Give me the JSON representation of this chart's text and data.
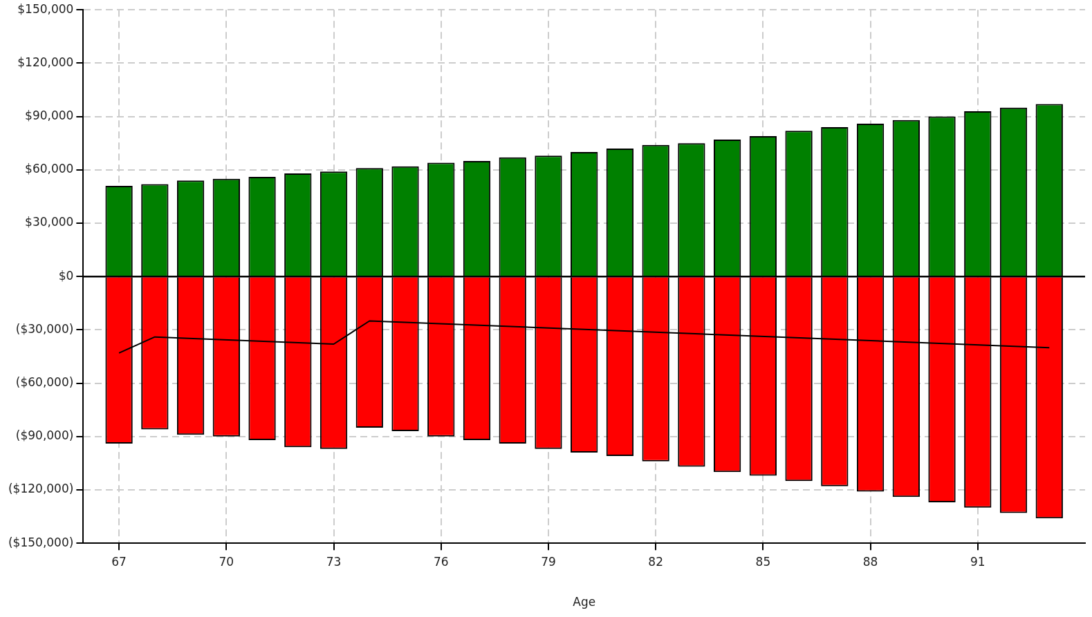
{
  "chart_data": {
    "type": "bar",
    "xlabel": "Age",
    "stacked": true,
    "grid": true,
    "legend": false,
    "x": [
      67,
      68,
      69,
      70,
      71,
      72,
      73,
      74,
      75,
      76,
      77,
      78,
      79,
      80,
      81,
      82,
      83,
      84,
      85,
      86,
      87,
      88,
      89,
      90,
      91,
      92,
      93
    ],
    "xlim": [
      66,
      94
    ],
    "xticks": [
      67,
      70,
      73,
      76,
      79,
      82,
      85,
      88,
      91
    ],
    "ylim": [
      -150000,
      150000
    ],
    "yticks": [
      {
        "value": -150000,
        "label": "($150,000)"
      },
      {
        "value": -120000,
        "label": "($120,000)"
      },
      {
        "value": -90000,
        "label": "($90,000)"
      },
      {
        "value": -60000,
        "label": "($60,000)"
      },
      {
        "value": -30000,
        "label": "($30,000)"
      },
      {
        "value": 0,
        "label": "$0"
      },
      {
        "value": 30000,
        "label": "$30,000"
      },
      {
        "value": 60000,
        "label": "$60,000"
      },
      {
        "value": 90000,
        "label": "$90,000"
      },
      {
        "value": 120000,
        "label": "$120,000"
      },
      {
        "value": 150000,
        "label": "$150,000"
      }
    ],
    "series": [
      {
        "color": "#008000",
        "values": [
          51000,
          52000,
          54000,
          55000,
          56000,
          58000,
          59000,
          61000,
          62000,
          64000,
          65000,
          67000,
          68000,
          70000,
          72000,
          74000,
          75000,
          77000,
          79000,
          82000,
          84000,
          86000,
          88000,
          90000,
          93000,
          95000,
          97000
        ]
      },
      {
        "color": "#ff0000",
        "values": [
          -94000,
          -86000,
          -89000,
          -90000,
          -92000,
          -96000,
          -97000,
          -85000,
          -87000,
          -90000,
          -92000,
          -94000,
          -97000,
          -99000,
          -101000,
          -104000,
          -107000,
          -110000,
          -112000,
          -115000,
          -118000,
          -121000,
          -124000,
          -127000,
          -130000,
          -133000,
          -136000
        ]
      },
      {
        "type": "line",
        "color": "#000000",
        "marker": "none",
        "line_style": "solid",
        "x": [
          67,
          68,
          73,
          74,
          93
        ],
        "values": [
          -43000,
          -34000,
          -38000,
          -25000,
          -40000
        ]
      }
    ],
    "ref_lines": [
      {
        "axis": "y",
        "value": 0,
        "color": "#000000"
      }
    ]
  }
}
